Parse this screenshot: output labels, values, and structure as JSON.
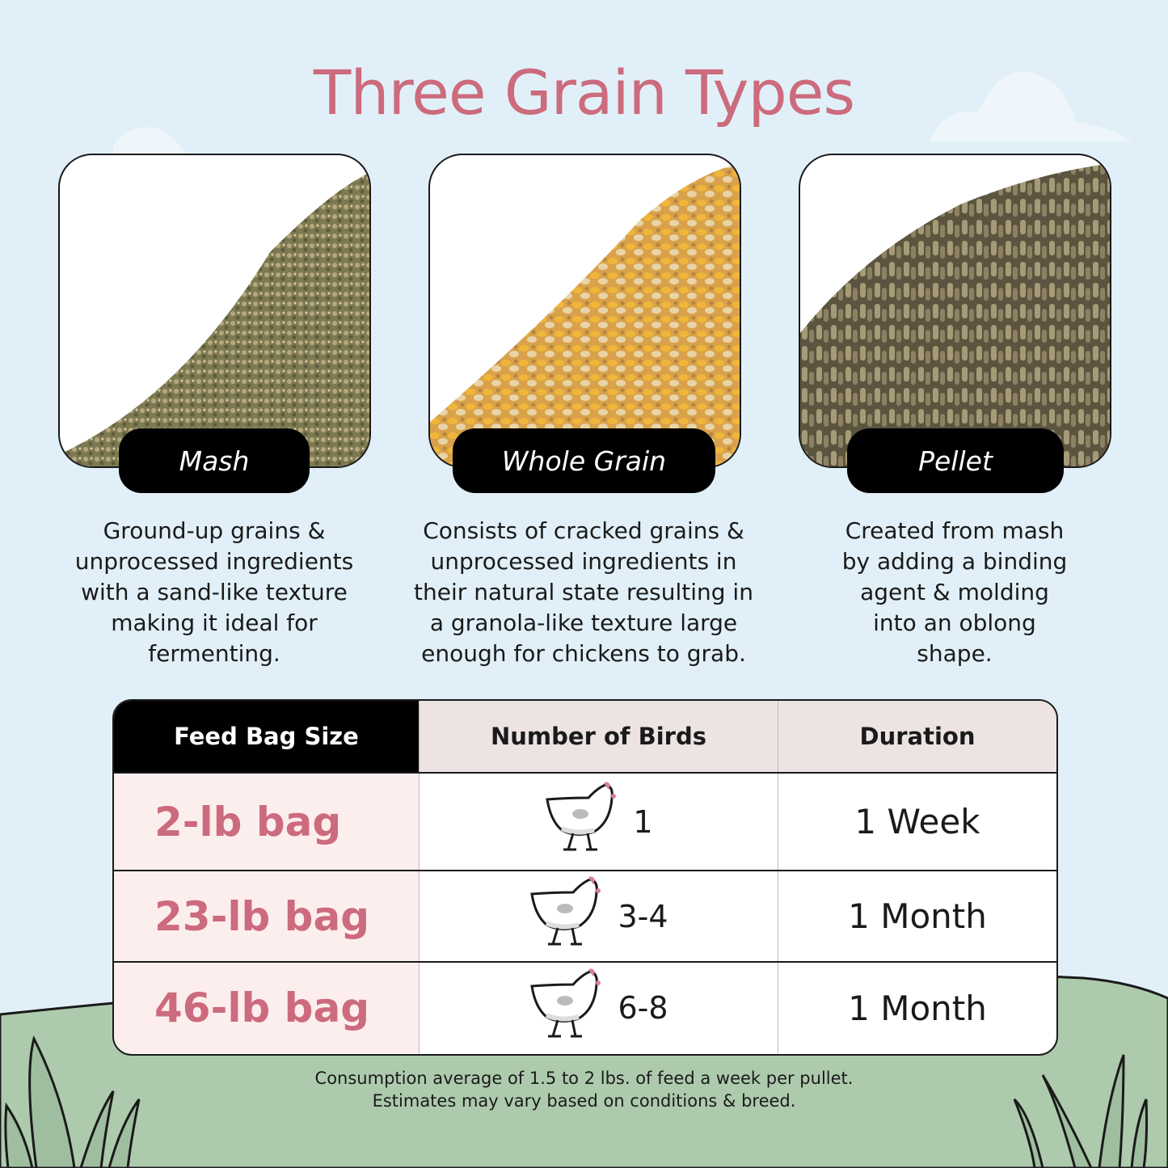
{
  "title": "Three Grain Types",
  "grains": [
    {
      "name": "Mash",
      "description": [
        "Ground-up grains &",
        "unprocessed ingredients",
        "with a sand-like texture",
        "making it ideal for",
        "fermenting."
      ]
    },
    {
      "name": "Whole Grain",
      "description": [
        "Consists of cracked grains &",
        "unprocessed ingredients in",
        "their natural state resulting in",
        "a granola-like texture large",
        "enough for chickens to grab."
      ]
    },
    {
      "name": "Pellet",
      "description": [
        "Created from mash",
        "by adding a binding",
        "agent & molding",
        "into an oblong",
        "shape."
      ]
    }
  ],
  "table": {
    "headers": [
      "Feed Bag Size",
      "Number of Birds",
      "Duration"
    ],
    "rows": [
      {
        "size": "2-lb bag",
        "birds": "1",
        "duration": "1 Week"
      },
      {
        "size": "23-lb bag",
        "birds": "3-4",
        "duration": "1 Month"
      },
      {
        "size": "46-lb bag",
        "birds": "6-8",
        "duration": "1 Month"
      }
    ]
  },
  "footnote": [
    "Consumption average of 1.5 to 2 lbs. of feed a week per pullet.",
    "Estimates may vary based on conditions & breed."
  ],
  "colors": {
    "accent": "#cc6b7d",
    "sky": "#e1f0f8",
    "grass": "#adcaad",
    "cell_pink": "#fdeeee",
    "header_gray": "#ede3e3"
  },
  "icons": [
    "chicken-icon",
    "grass-icon",
    "cloud-icon"
  ]
}
